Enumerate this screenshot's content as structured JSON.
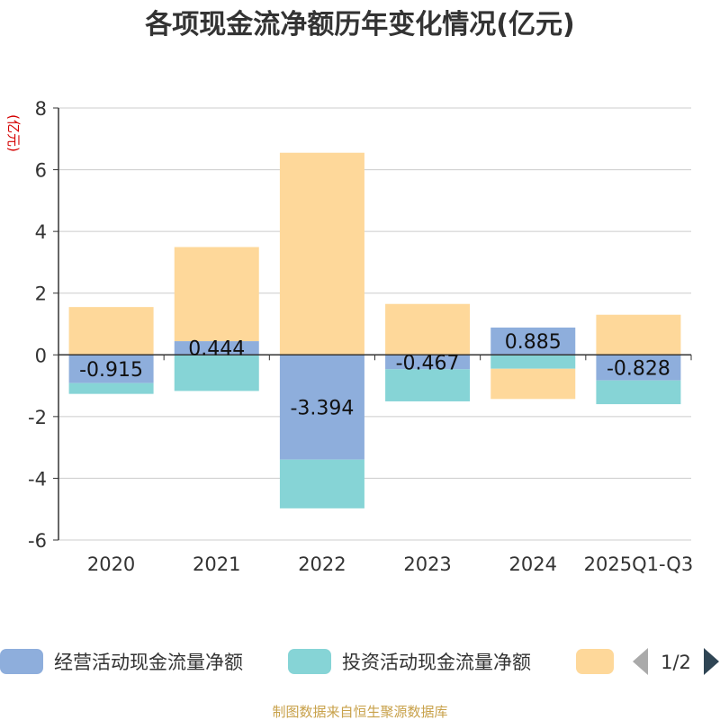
{
  "title": "各项现金流净额历年变化情况(亿元)",
  "unit_label": "(亿元)",
  "source": "制图数据来自恒生聚源数据库",
  "legend_page": "1/2",
  "colors": {
    "operating": "#8eaedc",
    "investing": "#86d4d6",
    "financing": "#fed89a",
    "axis": "#333333",
    "grid": "#cccccc",
    "pager_inactive": "#aaaaaa",
    "pager_active": "#2f4554"
  },
  "chart_data": {
    "type": "bar",
    "stacked": true,
    "categories": [
      "2020",
      "2021",
      "2022",
      "2023",
      "2024",
      "2025Q1-Q3"
    ],
    "ylim": [
      -6,
      8
    ],
    "yticks": [
      8,
      6,
      4,
      2,
      0,
      -2,
      -4,
      -6
    ],
    "grid": true,
    "legend_position": "bottom",
    "series": [
      {
        "name": "经营活动现金流量净额",
        "color_key": "operating",
        "values": [
          -0.915,
          0.444,
          -3.394,
          -0.467,
          0.885,
          -0.828
        ],
        "labels": [
          "-0.915",
          "0.444",
          "-3.394",
          "-0.467",
          "0.885",
          "-0.828"
        ]
      },
      {
        "name": "投资活动现金流量净额",
        "color_key": "investing",
        "values": [
          -0.35,
          -1.17,
          -1.58,
          -1.04,
          -0.45,
          -0.77
        ]
      },
      {
        "name": "",
        "color_key": "financing",
        "values": [
          1.55,
          3.05,
          6.55,
          1.65,
          -0.98,
          1.3
        ]
      }
    ]
  }
}
